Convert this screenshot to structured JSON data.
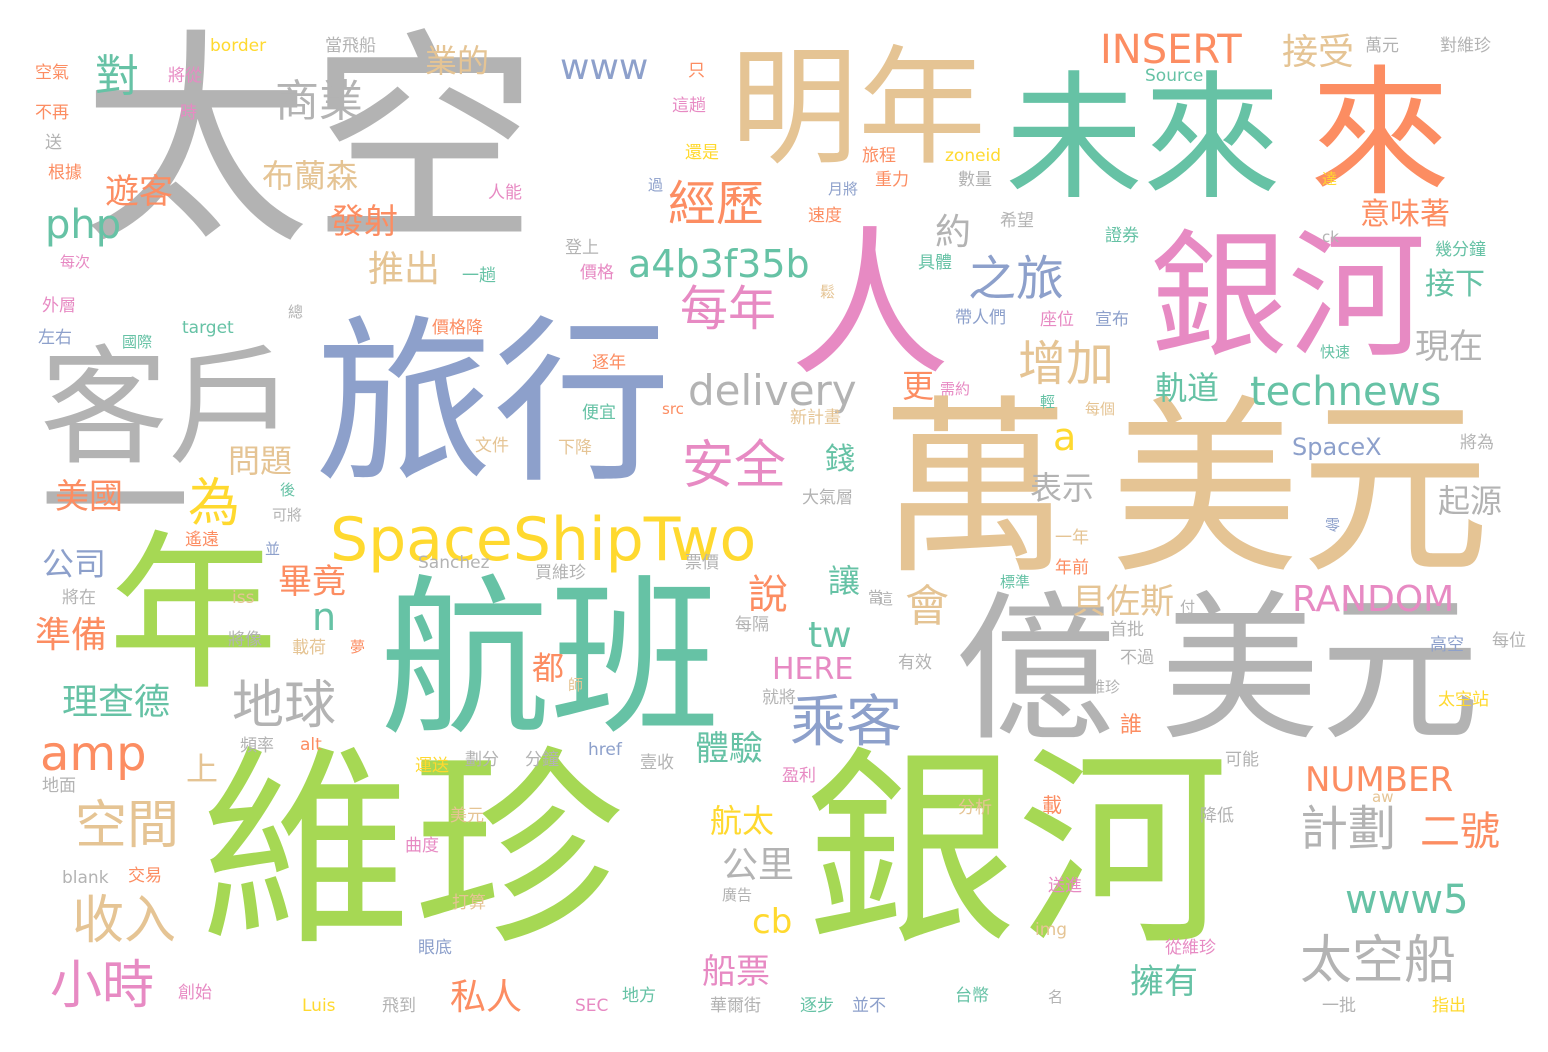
{
  "palette": {
    "gray": "#b3b3b3",
    "green": "#66c2a5",
    "orange": "#fc8d62",
    "blue": "#8da0cb",
    "pink": "#e78ac3",
    "lime": "#a6d854",
    "yellow": "#ffd92f",
    "tan": "#e5c494"
  },
  "words": [
    "太空",
    "維珍",
    "銀河",
    "萬",
    "美元",
    "億",
    "航班",
    "旅行",
    "年",
    "人",
    "未來",
    "來",
    "明年",
    "客戶",
    "一",
    "SpaceShipTwo",
    "a4b3f35b",
    "technews",
    "delivery",
    "INSERT",
    "RANDOM",
    "NUMBER",
    "HERE",
    "SpaceX",
    "www",
    "www5",
    "php",
    "amp",
    "tw",
    "cb",
    "n",
    "a",
    "商業",
    "對",
    "業的",
    "經歷",
    "之旅",
    "每年",
    "增加",
    "安全",
    "為",
    "乘客",
    "地球",
    "空間",
    "收入",
    "小時",
    "接受",
    "意味著",
    "接下",
    "現在",
    "軌道",
    "計劃",
    "二號",
    "太空船",
    "擁有",
    "私人",
    "船票",
    "公里",
    "航太",
    "布蘭森",
    "遊客",
    "發射",
    "推出",
    "約",
    "更",
    "問題",
    "美國",
    "公司",
    "準備",
    "理查德",
    "上",
    "錢",
    "讓",
    "說",
    "會",
    "都",
    "畢竟",
    "貝佐斯",
    "表示",
    "起源",
    "體驗",
    "border",
    "當飛船",
    "萬元",
    "對維珍",
    "空氣",
    "將從",
    "不再",
    "時",
    "送",
    "根據",
    "人能",
    "外層",
    "左右",
    "國際",
    "target",
    "總",
    "每次",
    "Source",
    "旅程",
    "zoneid",
    "重力",
    "數量",
    "月將",
    "速度",
    "希望",
    "證券",
    "幾分鐘",
    "達",
    "ck",
    "具體",
    "鬆",
    "帶人們",
    "座位",
    "宣布",
    "價格降",
    "快速",
    "逐年",
    "需約",
    "新計畫",
    "輕",
    "每個",
    "將為",
    "遙遠",
    "可將",
    "並",
    "後",
    "Sanchez",
    "買維珍",
    "票價",
    "標準",
    "這",
    "付",
    "零",
    "首批",
    "不過",
    "高空",
    "每位",
    "維珍",
    "年前",
    "一年",
    "將在",
    "iss",
    "將像",
    "載荷",
    "夢",
    "每隔",
    "有效",
    "師",
    "就將",
    "頻率",
    "alt",
    "劃分",
    "分鐘",
    "href",
    "壹收",
    "盈利",
    "地面",
    "美元",
    "分析",
    "降低",
    "aw",
    "blank",
    "交易",
    "曲度",
    "載",
    "打算",
    "廣告",
    "送進",
    "img",
    "眼底",
    "從維珍",
    "創始",
    "Luis",
    "飛到",
    "SEC",
    "地方",
    "逐步",
    "並不",
    "華爾街",
    "台幣",
    "名",
    "一批",
    "指出",
    "太空站",
    "可能",
    "運送",
    "誰",
    "登上",
    "價格",
    "一趟",
    "過",
    "這趟",
    "還是",
    "便宜",
    "src",
    "文件",
    "下降",
    "大氣層",
    "只",
    "當",
    "登上"
  ]
}
